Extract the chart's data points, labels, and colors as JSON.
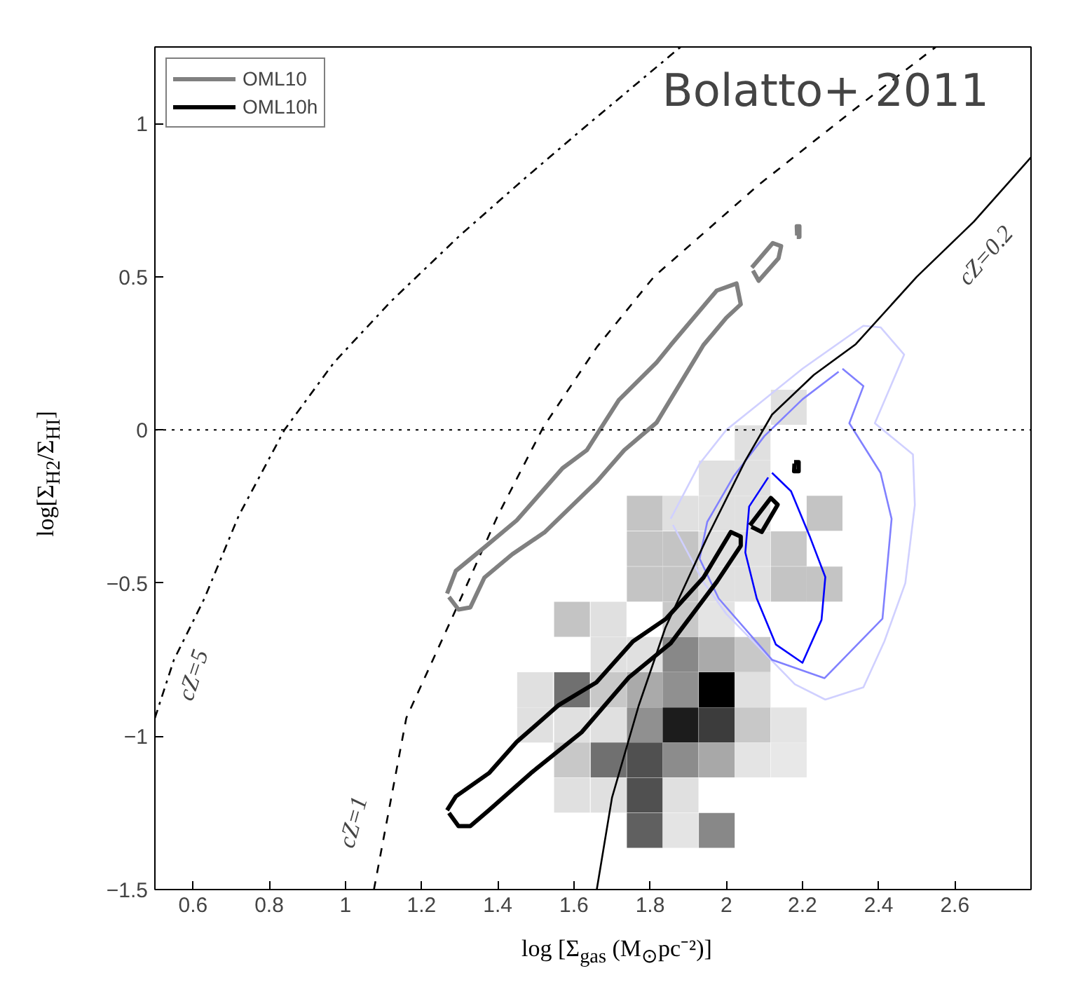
{
  "chart_data": {
    "type": "line",
    "xlabel": "log [Σ$_{gas}$ (M$_{⊙}$pc⁻²)]",
    "ylabel": "log[Σ$_{H2}$/Σ$_{HI}$]",
    "xlim": [
      0.5,
      2.8
    ],
    "ylim": [
      -1.5,
      1.25
    ],
    "xticks": [
      0.6,
      0.8,
      1,
      1.2,
      1.4,
      1.6,
      1.8,
      2,
      2.2,
      2.4,
      2.6
    ],
    "yticks": [
      -1.5,
      -1,
      -0.5,
      0,
      0.5,
      1
    ],
    "grid": false,
    "legend": "top left",
    "ref_lines": [
      {
        "axis": "y",
        "value": 0,
        "color": "#000000",
        "line_style": "dotted"
      }
    ],
    "annotations": [
      "Bolatto+ 2011",
      "cZ=5",
      "cZ=1",
      "cZ=0.2"
    ],
    "series": [
      {
        "type": "scatter",
        "marker": "square",
        "x": [
          2.164,
          2.069,
          1.975,
          2.069,
          1.786,
          1.88,
          1.975,
          2.069,
          2.258,
          1.786,
          1.88,
          1.975,
          2.069,
          2.164,
          1.786,
          1.88,
          1.975,
          2.069,
          2.164,
          2.258,
          1.595,
          1.691,
          1.88,
          1.975,
          1.691,
          1.786,
          1.88,
          1.975,
          2.069,
          1.498,
          1.595,
          1.691,
          1.786,
          1.88,
          1.975,
          2.069,
          1.498,
          1.595,
          1.691,
          1.786,
          1.88,
          1.975,
          2.069,
          2.164,
          1.595,
          1.691,
          1.786,
          1.88,
          1.975,
          2.069,
          2.164,
          1.595,
          1.691,
          1.786,
          1.88,
          1.786,
          1.88,
          1.975
        ],
        "values": [
          0.074,
          -0.042,
          -0.157,
          -0.157,
          -0.272,
          -0.272,
          -0.272,
          -0.272,
          -0.272,
          -0.388,
          -0.388,
          -0.388,
          -0.388,
          -0.388,
          -0.503,
          -0.503,
          -0.503,
          -0.503,
          -0.503,
          -0.503,
          -0.618,
          -0.618,
          -0.618,
          -0.618,
          -0.733,
          -0.733,
          -0.733,
          -0.733,
          -0.733,
          -0.848,
          -0.848,
          -0.848,
          -0.848,
          -0.848,
          -0.848,
          -0.848,
          -0.963,
          -0.963,
          -0.963,
          -0.963,
          -0.963,
          -0.963,
          -0.963,
          -0.963,
          -1.077,
          -1.077,
          -1.077,
          -1.077,
          -1.077,
          -1.077,
          -1.077,
          -1.192,
          -1.192,
          -1.192,
          -1.192,
          -1.307,
          -1.307,
          -1.307
        ],
        "colors": [
          "#e0e0e0",
          "#e0e0e0",
          "#e0e0e0",
          "#e0e0e0",
          "#c4c4c4",
          "#e0e0e0",
          "#e0e0e0",
          "#e0e0e0",
          "#c4c4c4",
          "#c4c4c4",
          "#c4c4c4",
          "#e0e0e0",
          "#e0e0e0",
          "#c8c8c8",
          "#c4c4c4",
          "#c4c4c4",
          "#e0e0e0",
          "#e0e0e0",
          "#c4c4c4",
          "#c4c4c4",
          "#c4c4c4",
          "#e0e0e0",
          "#c8c8c8",
          "#e4e4e4",
          "#e0e0e0",
          "#e0e0e0",
          "#888888",
          "#aaaaaa",
          "#c8c8c8",
          "#e0e0e0",
          "#707070",
          "#c8c8c8",
          "#aaaaaa",
          "#909090",
          "#000000",
          "#e0e0e0",
          "#e0e0e0",
          "#e0e0e0",
          "#e0e0e0",
          "#909090",
          "#1c1c1c",
          "#3c3c3c",
          "#c8c8c8",
          "#e4e4e4",
          "#c8c8c8",
          "#707070",
          "#505050",
          "#8c8c8c",
          "#a8a8a8",
          "#e4e4e4",
          "#e8e8e8",
          "#e0e0e0",
          "#e0e0e0",
          "#505050",
          "#e0e0e0",
          "#606060",
          "#e4e4e4",
          "#888888"
        ]
      },
      {
        "color": "#d0d0ff",
        "x": [
          1.854,
          1.93,
          2.0,
          2.1,
          2.2,
          2.36,
          2.405,
          2.467,
          2.39,
          2.49,
          2.495,
          2.47,
          2.415,
          2.36,
          2.26,
          2.18,
          2.0,
          1.94,
          1.86
        ],
        "values": [
          -0.29,
          -0.11,
          0.0,
          0.1,
          0.2,
          0.34,
          0.335,
          0.246,
          0.022,
          -0.08,
          -0.245,
          -0.5,
          -0.69,
          -0.84,
          -0.88,
          -0.83,
          -0.6,
          -0.496,
          -0.31
        ]
      },
      {
        "color": "#8080ff",
        "x": [
          2.305,
          2.36,
          2.323,
          2.405,
          2.434,
          2.41,
          2.258,
          2.12,
          1.98,
          1.93,
          1.95,
          2.02,
          2.1,
          2.2,
          2.295
        ],
        "values": [
          0.2,
          0.143,
          0.022,
          -0.14,
          -0.29,
          -0.616,
          -0.81,
          -0.75,
          -0.55,
          -0.42,
          -0.3,
          -0.15,
          -0.02,
          0.1,
          0.19
        ]
      },
      {
        "color": "#0000ff",
        "x": [
          2.12,
          2.17,
          2.22,
          2.26,
          2.25,
          2.2,
          2.13,
          2.08,
          2.05,
          2.06,
          2.11
        ],
        "values": [
          -0.14,
          -0.2,
          -0.35,
          -0.48,
          -0.62,
          -0.76,
          -0.7,
          -0.55,
          -0.4,
          -0.25,
          -0.155
        ]
      },
      {
        "color": "#000000",
        "line_style": "dashdot",
        "x": [
          0.5,
          0.55,
          0.63,
          0.72,
          0.84,
          0.97,
          1.12,
          1.3,
          1.47,
          1.63,
          1.88
        ],
        "values": [
          -0.94,
          -0.75,
          -0.55,
          -0.28,
          0,
          0.22,
          0.42,
          0.634,
          0.82,
          0.99,
          1.25
        ]
      },
      {
        "color": "#000000",
        "line_style": "dashed",
        "x": [
          1.075,
          1.16,
          1.285,
          1.4,
          1.52,
          1.66,
          1.81,
          2.085,
          2.34,
          2.55
        ],
        "values": [
          -1.5,
          -0.94,
          -0.6,
          -0.28,
          0.01,
          0.27,
          0.5,
          0.8,
          1.05,
          1.25
        ]
      },
      {
        "color": "#000000",
        "line_style": "solid",
        "x": [
          1.66,
          1.7,
          1.77,
          1.84,
          1.95,
          2.05,
          2.12,
          2.23,
          2.34,
          2.5,
          2.65,
          2.8
        ],
        "values": [
          -1.5,
          -1.2,
          -0.9,
          -0.646,
          -0.35,
          -0.1,
          0.05,
          0.18,
          0.28,
          0.5,
          0.68,
          0.89
        ]
      },
      {
        "name": "OML10",
        "color": "#808080",
        "x": [
          1.267,
          1.29,
          1.37,
          1.45,
          1.57,
          1.634,
          1.718,
          1.817,
          1.854,
          1.975,
          2.027,
          2.038,
          2.0,
          1.94,
          1.817,
          1.732,
          1.659,
          1.524,
          1.438,
          1.365,
          1.328,
          1.297,
          1.272
        ],
        "values": [
          -0.534,
          -0.46,
          -0.378,
          -0.295,
          -0.125,
          -0.066,
          0.098,
          0.22,
          0.277,
          0.455,
          0.478,
          0.41,
          0.366,
          0.277,
          0.024,
          -0.066,
          -0.17,
          -0.333,
          -0.406,
          -0.482,
          -0.579,
          -0.586,
          -0.545
        ]
      },
      {
        "color": "#808080",
        "x": [
          2.067,
          2.122,
          2.144,
          2.137,
          2.085,
          2.07
        ],
        "values": [
          0.53,
          0.61,
          0.6,
          0.56,
          0.487,
          0.52
        ]
      },
      {
        "color": "#808080",
        "x": [
          2.185,
          2.192,
          2.192,
          2.185,
          2.186
        ],
        "values": [
          0.63,
          0.63,
          0.665,
          0.665,
          0.635
        ]
      },
      {
        "name": "OML10h",
        "color": "#000000",
        "x": [
          1.267,
          1.29,
          1.377,
          1.45,
          1.56,
          1.659,
          1.755,
          1.842,
          1.94,
          2.012,
          2.038,
          2.038,
          1.975,
          1.854,
          1.744,
          1.62,
          1.487,
          1.377,
          1.328,
          1.297,
          1.272
        ],
        "values": [
          -1.241,
          -1.196,
          -1.12,
          -1.018,
          -0.898,
          -0.824,
          -0.69,
          -0.616,
          -0.482,
          -0.333,
          -0.348,
          -0.378,
          -0.496,
          -0.696,
          -0.808,
          -0.987,
          -1.12,
          -1.241,
          -1.293,
          -1.293,
          -1.25
        ]
      },
      {
        "color": "#000000",
        "x": [
          2.062,
          2.117,
          2.135,
          2.093,
          2.066
        ],
        "values": [
          -0.311,
          -0.222,
          -0.244,
          -0.333,
          -0.316
        ]
      },
      {
        "color": "#000000",
        "x": [
          2.178,
          2.19,
          2.19,
          2.178,
          2.179
        ],
        "values": [
          -0.105,
          -0.105,
          -0.135,
          -0.135,
          -0.11
        ]
      }
    ]
  }
}
